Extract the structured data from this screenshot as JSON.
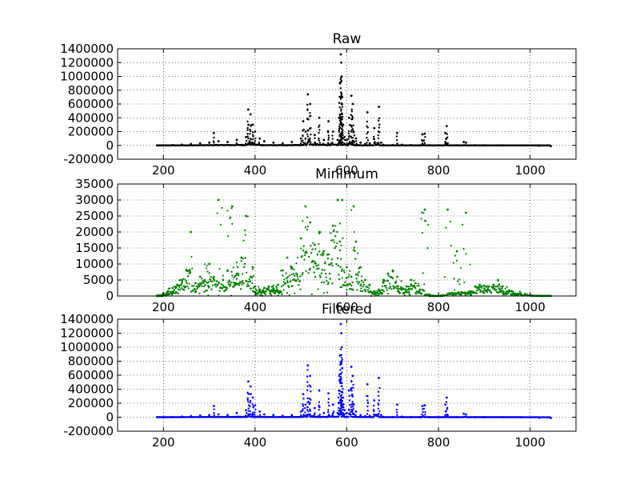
{
  "chart_data": [
    {
      "type": "scatter",
      "title": "Raw",
      "xlim": [
        100,
        1100
      ],
      "ylim": [
        -200000,
        1400000
      ],
      "xticks": [
        200,
        400,
        600,
        800,
        1000
      ],
      "yticks": [
        -200000,
        0,
        200000,
        400000,
        600000,
        800000,
        1000000,
        1200000,
        1400000
      ],
      "grid": true,
      "color": "#000000",
      "series": [
        {
          "x": [
            186,
            200,
            220,
            240,
            260,
            280,
            300,
            310,
            320,
            340,
            360,
            380,
            385,
            390,
            395,
            400,
            410,
            420,
            440,
            460,
            480,
            500,
            505,
            510,
            515,
            520,
            530,
            540,
            550,
            560,
            570,
            580,
            583,
            585,
            587,
            588,
            589,
            590,
            592,
            595,
            600,
            605,
            610,
            613,
            615,
            620,
            630,
            640,
            645,
            650,
            660,
            670,
            675,
            680,
            700,
            710,
            720,
            740,
            760,
            765,
            770,
            780,
            800,
            815,
            818,
            820,
            840,
            855,
            860,
            880,
            900,
            940,
            980,
            1020,
            1045
          ],
          "y": [
            0,
            1000,
            5000,
            12000,
            20000,
            30000,
            40000,
            180000,
            60000,
            50000,
            80000,
            120000,
            520000,
            450000,
            300000,
            200000,
            100000,
            60000,
            40000,
            30000,
            50000,
            100000,
            350000,
            200000,
            740000,
            600000,
            150000,
            400000,
            80000,
            350000,
            200000,
            80000,
            400000,
            900000,
            1320000,
            1200000,
            1000000,
            700000,
            300000,
            120000,
            80000,
            400000,
            720000,
            600000,
            200000,
            100000,
            40000,
            20000,
            480000,
            30000,
            250000,
            560000,
            40000,
            10000,
            5000,
            180000,
            10000,
            5000,
            3000,
            160000,
            170000,
            3000,
            2000,
            180000,
            280000,
            30000,
            2000,
            50000,
            40000,
            2000,
            1000,
            500,
            0,
            -5000,
            -10000
          ]
        }
      ]
    },
    {
      "type": "scatter",
      "title": "Minimum",
      "xlim": [
        100,
        1100
      ],
      "ylim": [
        0,
        35000
      ],
      "xticks": [
        200,
        400,
        600,
        800,
        1000
      ],
      "yticks": [
        0,
        5000,
        10000,
        15000,
        20000,
        25000,
        30000,
        35000
      ],
      "grid": true,
      "color": "#008000",
      "series": [
        {
          "x": [
            186,
            200,
            210,
            220,
            230,
            240,
            250,
            260,
            270,
            280,
            290,
            300,
            310,
            320,
            330,
            340,
            350,
            360,
            370,
            380,
            390,
            395,
            400,
            410,
            420,
            430,
            440,
            450,
            455,
            460,
            470,
            480,
            490,
            500,
            510,
            520,
            530,
            540,
            550,
            560,
            570,
            580,
            585,
            590,
            600,
            610,
            615,
            620,
            630,
            640,
            650,
            660,
            670,
            680,
            690,
            700,
            710,
            720,
            730,
            740,
            750,
            760,
            770,
            780,
            790,
            800,
            810,
            820,
            830,
            840,
            850,
            860,
            870,
            880,
            890,
            900,
            910,
            920,
            930,
            940,
            960,
            980,
            1000,
            1020,
            1045
          ],
          "y": [
            0,
            800,
            1500,
            2500,
            3500,
            5000,
            8000,
            20000,
            4000,
            6000,
            5000,
            10000,
            6000,
            30000,
            5000,
            8000,
            28000,
            7000,
            12000,
            25000,
            6000,
            9000,
            3000,
            2000,
            2500,
            3000,
            2000,
            3500,
            1500,
            8000,
            12000,
            9000,
            7000,
            18000,
            28000,
            23000,
            16000,
            20000,
            14000,
            13000,
            22000,
            30000,
            17000,
            30000,
            9000,
            6000,
            28000,
            17000,
            9000,
            5000,
            3500,
            1500,
            2000,
            5000,
            7000,
            8000,
            6000,
            2500,
            3000,
            5000,
            4000,
            2000,
            27000,
            500,
            0,
            0,
            300,
            27000,
            1000,
            14000,
            1200,
            26000,
            1500,
            3000,
            3500,
            3200,
            3000,
            3500,
            5000,
            3000,
            1500,
            800,
            300,
            100,
            0
          ]
        }
      ]
    },
    {
      "type": "scatter",
      "title": "Filtered",
      "xlim": [
        100,
        1100
      ],
      "ylim": [
        -200000,
        1400000
      ],
      "xticks": [
        200,
        400,
        600,
        800,
        1000
      ],
      "yticks": [
        -200000,
        0,
        200000,
        400000,
        600000,
        800000,
        1000000,
        1200000,
        1400000
      ],
      "grid": true,
      "color": "#0000ff",
      "series": [
        {
          "x": [
            186,
            200,
            220,
            240,
            260,
            280,
            300,
            310,
            320,
            340,
            360,
            380,
            385,
            390,
            395,
            400,
            410,
            420,
            440,
            460,
            480,
            500,
            505,
            510,
            515,
            520,
            530,
            540,
            550,
            560,
            570,
            580,
            583,
            585,
            587,
            588,
            589,
            590,
            592,
            595,
            600,
            605,
            610,
            613,
            615,
            620,
            630,
            640,
            645,
            650,
            660,
            670,
            675,
            680,
            700,
            710,
            720,
            740,
            760,
            765,
            770,
            780,
            800,
            815,
            818,
            820,
            840,
            855,
            860,
            880,
            900,
            940,
            980,
            1020,
            1045
          ],
          "y": [
            0,
            500,
            3000,
            8000,
            15000,
            22000,
            30000,
            160000,
            40000,
            30000,
            60000,
            100000,
            510000,
            440000,
            280000,
            170000,
            80000,
            40000,
            30000,
            20000,
            30000,
            80000,
            330000,
            180000,
            740000,
            590000,
            130000,
            380000,
            60000,
            340000,
            180000,
            60000,
            380000,
            880000,
            1330000,
            1200000,
            1000000,
            700000,
            280000,
            100000,
            60000,
            380000,
            720000,
            590000,
            180000,
            80000,
            30000,
            15000,
            470000,
            20000,
            240000,
            560000,
            30000,
            5000,
            2000,
            180000,
            8000,
            3000,
            2000,
            160000,
            170000,
            2000,
            1000,
            180000,
            280000,
            28000,
            1000,
            50000,
            38000,
            1000,
            500,
            0,
            -2000,
            -8000,
            -12000
          ]
        }
      ]
    }
  ]
}
